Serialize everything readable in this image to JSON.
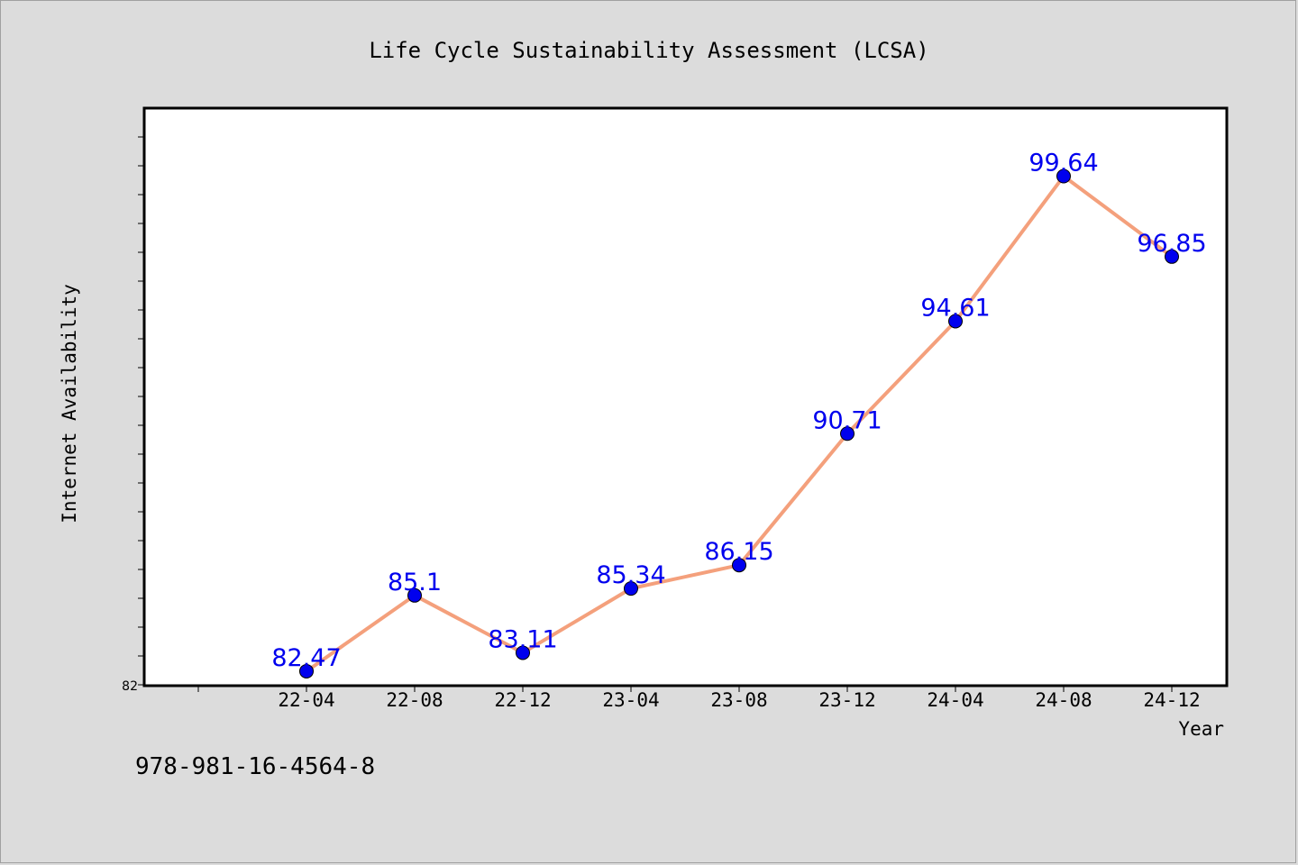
{
  "chart_data": {
    "type": "line",
    "title": "Life Cycle Sustainability Assessment (LCSA)",
    "xlabel": "Year",
    "ylabel": "Internet Availability",
    "categories": [
      "22-04",
      "22-08",
      "22-12",
      "23-04",
      "23-08",
      "23-12",
      "24-04",
      "24-08",
      "24-12"
    ],
    "series": [
      {
        "values": [
          82.47,
          85.1,
          83.11,
          85.34,
          86.15,
          90.71,
          94.61,
          99.64,
          96.85
        ],
        "line_color": "#f4a07c",
        "marker_color": "#0000ee",
        "label_color": "#0000ee"
      }
    ],
    "ylim": [
      82,
      102
    ],
    "y_tick_labels": [
      "82"
    ],
    "grid": false,
    "legend": "none"
  },
  "footer": {
    "code": "978-981-16-4564-8"
  }
}
